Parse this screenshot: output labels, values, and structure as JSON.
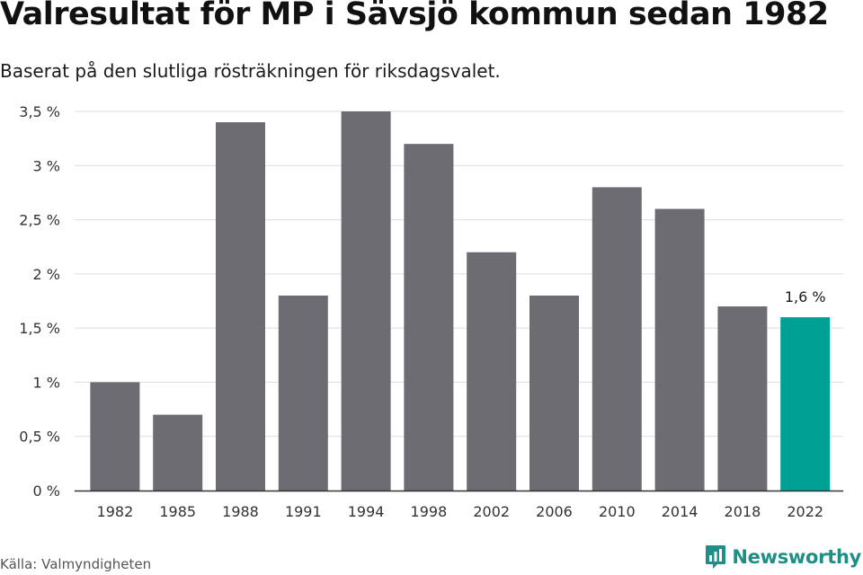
{
  "header": {
    "title": "Valresultat för MP i Sävsjö kommun sedan 1982",
    "subtitle": "Baserat på den slutliga rösträkningen för riksdagsvalet."
  },
  "footer": {
    "source": "Källa: Valmyndigheten",
    "brand": "Newsworthy"
  },
  "colors": {
    "bar": "#6d6c72",
    "highlight": "#00a195",
    "grid": "#dddddd",
    "axis": "#333333",
    "brand": "#1e8f86"
  },
  "chart_data": {
    "type": "bar",
    "categories": [
      "1982",
      "1985",
      "1988",
      "1991",
      "1994",
      "1998",
      "2002",
      "2006",
      "2010",
      "2014",
      "2018",
      "2022"
    ],
    "values": [
      1.0,
      0.7,
      3.4,
      1.8,
      3.5,
      3.2,
      2.2,
      1.8,
      2.8,
      2.6,
      1.7,
      1.6
    ],
    "ylim": [
      0,
      3.5
    ],
    "yticks": [
      0,
      0.5,
      1,
      1.5,
      2,
      2.5,
      3,
      3.5
    ],
    "ytick_labels": [
      "0 %",
      "0,5 %",
      "1 %",
      "1,5 %",
      "2 %",
      "2,5 %",
      "3 %",
      "3,5 %"
    ],
    "highlight_index": 11,
    "annotation": "1,6 %",
    "grid": true
  }
}
